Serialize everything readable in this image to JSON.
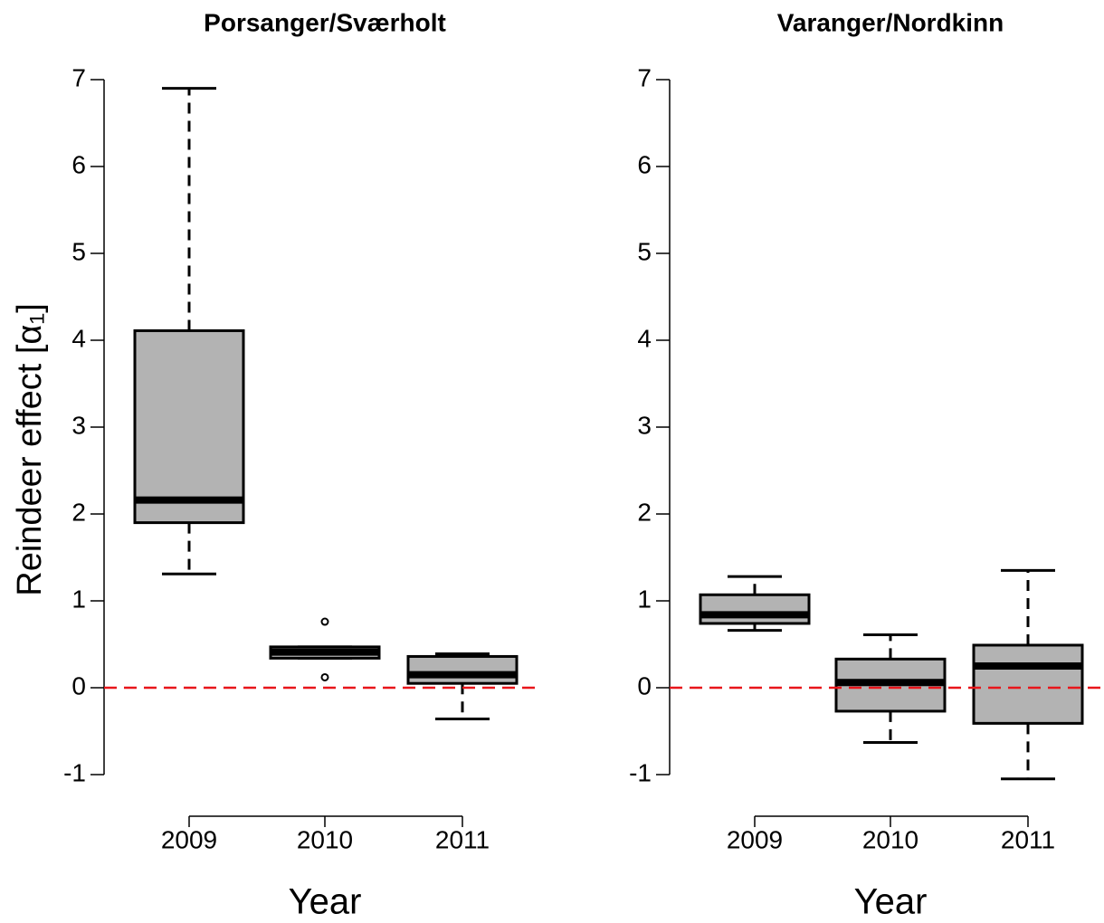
{
  "chart_data": [
    {
      "type": "box",
      "title": "Porsanger/Sværholt",
      "xlabel": "Year",
      "ylabel": "Reindeer effect [α₁]",
      "categories": [
        "2009",
        "2010",
        "2011"
      ],
      "color": "#b3b3b3",
      "ylim": [
        -1,
        7
      ],
      "yticks": [
        -1,
        0,
        1,
        2,
        3,
        4,
        5,
        6,
        7
      ],
      "hline": 0,
      "hline_color": "#e8161b",
      "boxes": [
        {
          "low": 1.31,
          "q1": 1.9,
          "median": 2.16,
          "q3": 4.11,
          "high": 6.9
        },
        {
          "low": 0.34,
          "q1": 0.34,
          "median": 0.41,
          "q3": 0.47,
          "high": 0.47,
          "outliers": [
            0.76,
            0.12
          ]
        },
        {
          "low": -0.36,
          "q1": 0.05,
          "median": 0.15,
          "q3": 0.36,
          "high": 0.39
        }
      ]
    },
    {
      "type": "box",
      "title": "Varanger/Nordkinn",
      "xlabel": "Year",
      "categories": [
        "2009",
        "2010",
        "2011"
      ],
      "color": "#b3b3b3",
      "ylim": [
        -1,
        7
      ],
      "yticks": [
        -1,
        0,
        1,
        2,
        3,
        4,
        5,
        6,
        7
      ],
      "hline": 0,
      "hline_color": "#e8161b",
      "boxes": [
        {
          "low": 0.66,
          "q1": 0.74,
          "median": 0.84,
          "q3": 1.07,
          "high": 1.28
        },
        {
          "low": -0.63,
          "q1": -0.27,
          "median": 0.06,
          "q3": 0.33,
          "high": 0.61
        },
        {
          "low": -1.05,
          "q1": -0.41,
          "median": 0.25,
          "q3": 0.49,
          "high": 1.35
        }
      ]
    }
  ]
}
